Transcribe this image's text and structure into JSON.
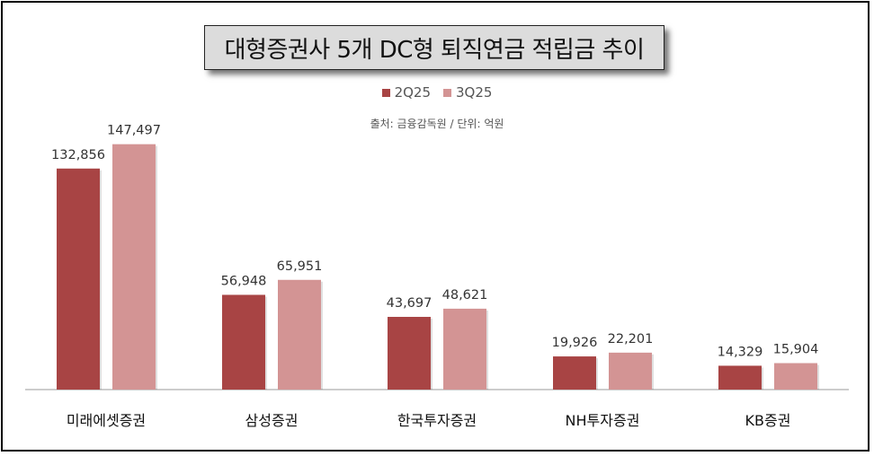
{
  "title": "대형증권사 5개 DC형 퇴직연금 적립금 추이",
  "source": "출처: 금융감독원 / 단위: 억원",
  "colors": {
    "series1": "#a84444",
    "series2": "#d39494"
  },
  "chart_data": {
    "type": "bar",
    "title": "대형증권사 5개 DC형 퇴직연금 적립금 추이",
    "categories": [
      "미래에셋증권",
      "삼성증권",
      "한국투자증권",
      "NH투자증권",
      "KB증권"
    ],
    "series": [
      {
        "name": "2Q25",
        "values": [
          132856,
          56948,
          43697,
          19926,
          14329
        ],
        "labels": [
          "132,856",
          "56,948",
          "43,697",
          "19,926",
          "14,329"
        ]
      },
      {
        "name": "3Q25",
        "values": [
          147497,
          65951,
          48621,
          22201,
          15904
        ],
        "labels": [
          "147,497",
          "65,951",
          "48,621",
          "22,201",
          "15,904"
        ]
      }
    ],
    "ylim": [
      0,
      150000
    ],
    "legend": "top-center",
    "grid": false
  }
}
